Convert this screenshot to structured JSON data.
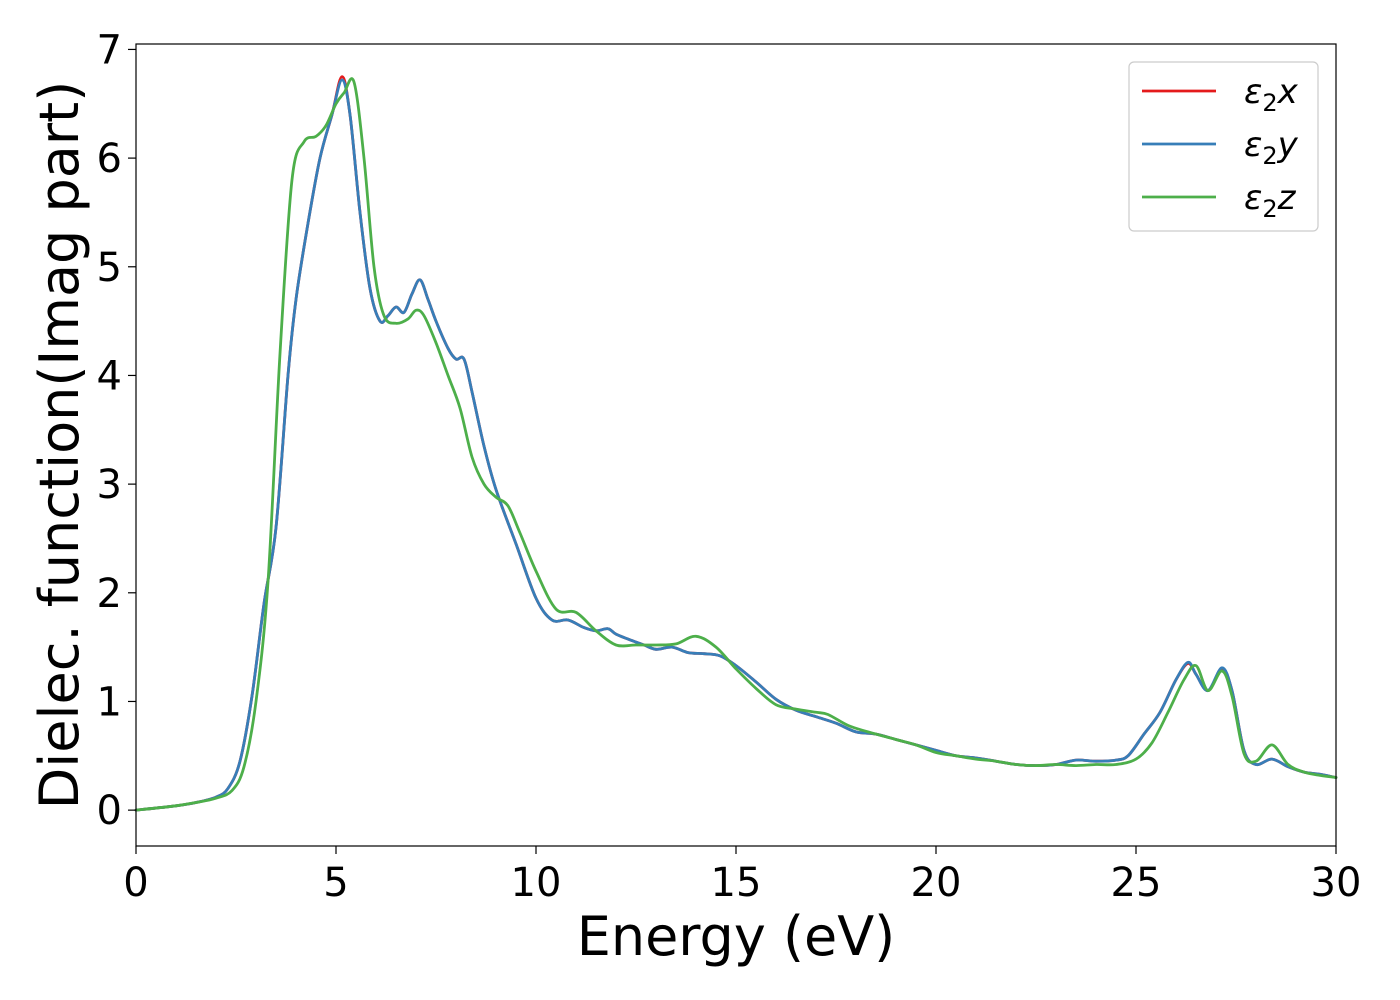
{
  "chart_data": {
    "type": "line",
    "xlabel": "Energy (eV)",
    "ylabel": "Dielec. function(Imag part)",
    "xlim": [
      0,
      30
    ],
    "ylim": [
      -0.33,
      7.05
    ],
    "xticks": [
      0,
      5,
      10,
      15,
      20,
      25,
      30
    ],
    "yticks": [
      0,
      1,
      2,
      3,
      4,
      5,
      6,
      7
    ],
    "grid": false,
    "legend_position": "top-right",
    "series": [
      {
        "name": "ε2x",
        "legend_base": "ε",
        "legend_sub": "2",
        "legend_var": "x",
        "color": "#e41a1c",
        "x": [
          0,
          1,
          1.5,
          2,
          2.3,
          2.6,
          2.9,
          3.2,
          3.5,
          3.8,
          4.0,
          4.3,
          4.6,
          4.9,
          5.15,
          5.35,
          5.6,
          5.85,
          6.1,
          6.3,
          6.5,
          6.7,
          6.9,
          7.1,
          7.3,
          7.5,
          7.8,
          8.0,
          8.2,
          8.4,
          8.7,
          9.0,
          9.5,
          10.0,
          10.4,
          10.8,
          11.2,
          11.5,
          11.8,
          12.0,
          12.4,
          12.7,
          13.0,
          13.4,
          13.8,
          14.2,
          14.6,
          15.0,
          15.5,
          16.0,
          16.5,
          17.0,
          17.5,
          18.0,
          18.5,
          19.0,
          19.5,
          20.0,
          20.5,
          21.0,
          21.5,
          22.0,
          22.5,
          23.0,
          23.5,
          24.0,
          24.5,
          24.8,
          25.2,
          25.6,
          26.0,
          26.3,
          26.5,
          26.8,
          27.15,
          27.4,
          27.7,
          28.0,
          28.4,
          28.8,
          29.2,
          29.6,
          30.0
        ],
        "y": [
          0,
          0.04,
          0.07,
          0.12,
          0.2,
          0.45,
          1.05,
          1.9,
          2.6,
          4.0,
          4.7,
          5.4,
          6.0,
          6.4,
          6.75,
          6.4,
          5.5,
          4.8,
          4.5,
          4.55,
          4.63,
          4.58,
          4.75,
          4.88,
          4.7,
          4.5,
          4.25,
          4.15,
          4.15,
          3.85,
          3.35,
          2.95,
          2.45,
          1.95,
          1.75,
          1.75,
          1.68,
          1.65,
          1.67,
          1.62,
          1.56,
          1.52,
          1.48,
          1.5,
          1.45,
          1.44,
          1.42,
          1.33,
          1.18,
          1.02,
          0.92,
          0.86,
          0.8,
          0.72,
          0.7,
          0.65,
          0.6,
          0.55,
          0.5,
          0.48,
          0.45,
          0.42,
          0.41,
          0.42,
          0.46,
          0.45,
          0.46,
          0.5,
          0.7,
          0.9,
          1.2,
          1.35,
          1.25,
          1.1,
          1.3,
          1.1,
          0.55,
          0.42,
          0.47,
          0.4,
          0.35,
          0.33,
          0.3
        ]
      },
      {
        "name": "ε2y",
        "legend_base": "ε",
        "legend_sub": "2",
        "legend_var": "y",
        "color": "#377eb8",
        "x": [
          0,
          1,
          1.5,
          2,
          2.3,
          2.6,
          2.9,
          3.2,
          3.5,
          3.8,
          4.0,
          4.3,
          4.6,
          4.9,
          5.15,
          5.35,
          5.6,
          5.85,
          6.1,
          6.3,
          6.5,
          6.7,
          6.9,
          7.1,
          7.3,
          7.5,
          7.8,
          8.0,
          8.2,
          8.4,
          8.7,
          9.0,
          9.5,
          10.0,
          10.4,
          10.8,
          11.2,
          11.5,
          11.8,
          12.0,
          12.4,
          12.7,
          13.0,
          13.4,
          13.8,
          14.2,
          14.6,
          15.0,
          15.5,
          16.0,
          16.5,
          17.0,
          17.5,
          18.0,
          18.5,
          19.0,
          19.5,
          20.0,
          20.5,
          21.0,
          21.5,
          22.0,
          22.5,
          23.0,
          23.5,
          24.0,
          24.5,
          24.8,
          25.2,
          25.6,
          26.0,
          26.3,
          26.5,
          26.8,
          27.15,
          27.4,
          27.7,
          28.0,
          28.4,
          28.8,
          29.2,
          29.6,
          30.0
        ],
        "y": [
          0,
          0.04,
          0.07,
          0.12,
          0.2,
          0.45,
          1.05,
          1.9,
          2.6,
          4.0,
          4.7,
          5.4,
          6.0,
          6.4,
          6.72,
          6.4,
          5.5,
          4.8,
          4.5,
          4.55,
          4.63,
          4.58,
          4.75,
          4.88,
          4.7,
          4.5,
          4.25,
          4.15,
          4.15,
          3.85,
          3.35,
          2.95,
          2.45,
          1.95,
          1.75,
          1.75,
          1.68,
          1.65,
          1.67,
          1.62,
          1.56,
          1.52,
          1.48,
          1.5,
          1.45,
          1.44,
          1.42,
          1.33,
          1.18,
          1.02,
          0.92,
          0.86,
          0.8,
          0.72,
          0.7,
          0.65,
          0.6,
          0.55,
          0.5,
          0.48,
          0.45,
          0.42,
          0.41,
          0.42,
          0.46,
          0.45,
          0.46,
          0.5,
          0.7,
          0.9,
          1.2,
          1.36,
          1.25,
          1.1,
          1.31,
          1.1,
          0.55,
          0.42,
          0.47,
          0.4,
          0.35,
          0.33,
          0.3
        ]
      },
      {
        "name": "ε2z",
        "legend_base": "ε",
        "legend_sub": "2",
        "legend_var": "z",
        "color": "#4daf4a",
        "x": [
          0,
          1,
          1.5,
          2,
          2.4,
          2.7,
          3.0,
          3.3,
          3.6,
          3.9,
          4.2,
          4.5,
          4.75,
          5.0,
          5.2,
          5.45,
          5.7,
          5.95,
          6.2,
          6.5,
          6.8,
          7.0,
          7.2,
          7.5,
          7.8,
          8.1,
          8.4,
          8.7,
          9.0,
          9.3,
          9.6,
          10.0,
          10.5,
          11.0,
          11.5,
          12.0,
          12.5,
          13.0,
          13.5,
          14.0,
          14.5,
          15.0,
          15.5,
          16.0,
          16.5,
          17.0,
          17.3,
          17.8,
          18.3,
          19.0,
          19.5,
          20.0,
          20.5,
          21.0,
          21.5,
          22.0,
          22.5,
          23.0,
          23.5,
          24.0,
          24.5,
          25.0,
          25.4,
          25.8,
          26.2,
          26.5,
          26.8,
          27.15,
          27.4,
          27.7,
          28.0,
          28.4,
          28.8,
          29.2,
          29.6,
          30.0
        ],
        "y": [
          0,
          0.04,
          0.07,
          0.11,
          0.18,
          0.4,
          1.0,
          2.1,
          4.2,
          5.8,
          6.15,
          6.2,
          6.3,
          6.5,
          6.6,
          6.7,
          6.0,
          5.0,
          4.55,
          4.48,
          4.52,
          4.6,
          4.55,
          4.3,
          4.0,
          3.7,
          3.25,
          3.0,
          2.88,
          2.8,
          2.55,
          2.2,
          1.85,
          1.82,
          1.65,
          1.52,
          1.52,
          1.52,
          1.53,
          1.6,
          1.5,
          1.3,
          1.12,
          0.97,
          0.93,
          0.9,
          0.88,
          0.78,
          0.72,
          0.65,
          0.6,
          0.53,
          0.5,
          0.47,
          0.45,
          0.42,
          0.41,
          0.42,
          0.41,
          0.42,
          0.42,
          0.47,
          0.62,
          0.9,
          1.2,
          1.33,
          1.1,
          1.28,
          1.05,
          0.52,
          0.45,
          0.6,
          0.42,
          0.35,
          0.32,
          0.3
        ]
      }
    ]
  }
}
